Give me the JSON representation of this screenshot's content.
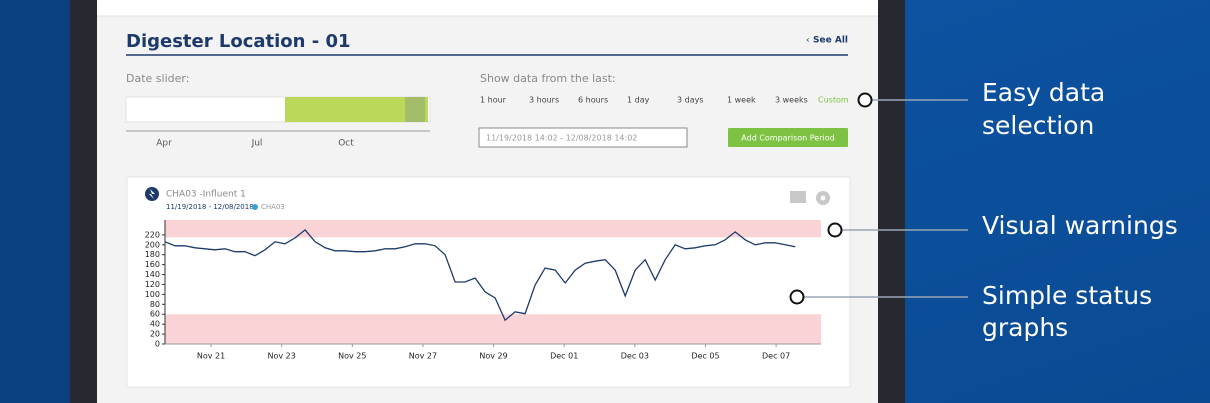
{
  "panel": {
    "title": "Digester Location - 01",
    "see_all": "See All",
    "date_slider": {
      "label": "Date slider:",
      "months": [
        "Apr",
        "Jul",
        "Oct"
      ]
    },
    "range_picker": {
      "label": "Show data from the last:",
      "options": [
        "1 hour",
        "3 hours",
        "6 hours",
        "1 day",
        "3 days",
        "1 week",
        "3 weeks",
        "Custom"
      ],
      "selected_index": 7,
      "date_input": "11/19/2018 14:02 - 12/08/2018 14:02",
      "button": "Add Comparison Period"
    }
  },
  "chart_card": {
    "name": "CHA03 -Influent 1",
    "range": "11/19/2018 - 12/08/2018",
    "legend": "CHA03"
  },
  "chart_data": {
    "type": "line",
    "xlim": [
      "2018-11-19T16:44",
      "2018-12-08T06:30"
    ],
    "xticks": [
      {
        "value": "2018-11-21",
        "label": "Nov 21"
      },
      {
        "value": "2018-11-23",
        "label": "Nov 23"
      },
      {
        "value": "2018-11-25",
        "label": "Nov 25"
      },
      {
        "value": "2018-11-27",
        "label": "Nov 27"
      },
      {
        "value": "2018-11-29",
        "label": "Nov 29"
      },
      {
        "value": "2018-12-01",
        "label": "Dec 01"
      },
      {
        "value": "2018-12-03",
        "label": "Dec 03"
      },
      {
        "value": "2018-12-05",
        "label": "Dec 05"
      },
      {
        "value": "2018-12-07",
        "label": "Dec 07"
      }
    ],
    "ylim": [
      0,
      250
    ],
    "yticks": [
      0,
      20,
      40,
      60,
      80,
      100,
      120,
      140,
      160,
      180,
      200,
      220
    ],
    "warning_bands": [
      {
        "from": 215,
        "to": 250,
        "color": "#f9d3d6"
      },
      {
        "from": 0,
        "to": 60,
        "color": "#f9d3d6"
      }
    ],
    "series": [
      {
        "name": "CHA03",
        "color": "#1d3a6b",
        "x_start": "2018-11-19T16:44",
        "x_end": "2018-12-07T13:00",
        "values": [
          206,
          198,
          198,
          194,
          192,
          190,
          192,
          186,
          186,
          178,
          190,
          206,
          202,
          214,
          230,
          206,
          194,
          188,
          188,
          186,
          186,
          188,
          192,
          192,
          196,
          202,
          202,
          198,
          180,
          125,
          125,
          133,
          105,
          93,
          48,
          65,
          61,
          119,
          153,
          149,
          123,
          149,
          163,
          167,
          170,
          149,
          97,
          149,
          170,
          129,
          170,
          200,
          192,
          194,
          198,
          200,
          210,
          226,
          210,
          200,
          204,
          204,
          200,
          196
        ]
      }
    ]
  },
  "callouts": [
    {
      "lines": [
        "Easy data",
        "selection"
      ]
    },
    {
      "lines": [
        "Visual warnings"
      ]
    },
    {
      "lines": [
        "Simple status",
        "graphs"
      ]
    }
  ]
}
